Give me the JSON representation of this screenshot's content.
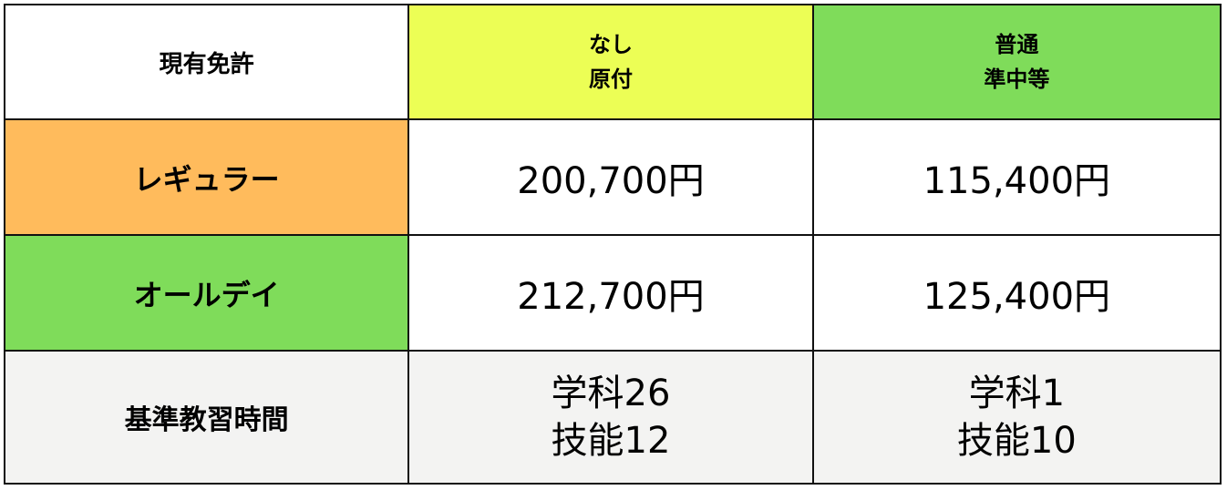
{
  "colors": {
    "yellow_header": "#ecfe55",
    "green_header": "#7fdc5a",
    "orange_row": "#ffbb5c",
    "green_row": "#7fdc5a",
    "gray_row": "#f3f3f2"
  },
  "header": {
    "corner": "現有免許",
    "col1": [
      "なし",
      "原付"
    ],
    "col2": [
      "普通",
      "準中等"
    ]
  },
  "rows": [
    {
      "label": "レギュラー",
      "col1": "200,700円",
      "col2": "115,400円"
    },
    {
      "label": "オールデイ",
      "col1": "212,700円",
      "col2": "125,400円"
    },
    {
      "label": "基準教習時間",
      "col1": [
        "学科26",
        "技能12"
      ],
      "col2": [
        "学科1",
        "技能10"
      ]
    }
  ]
}
